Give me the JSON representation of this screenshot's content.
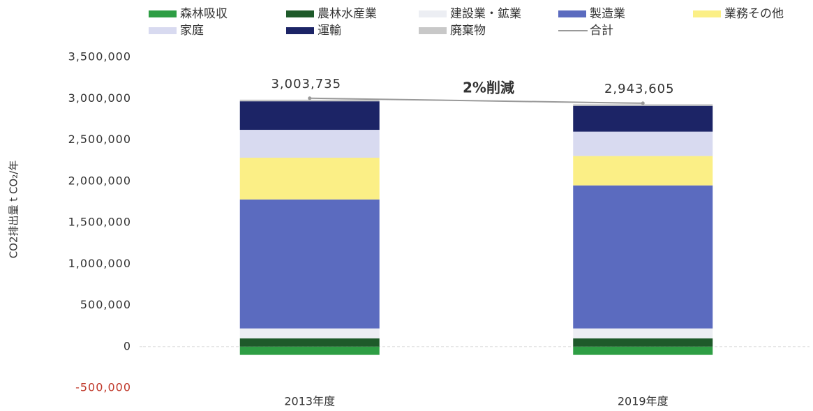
{
  "chart_data": {
    "type": "bar",
    "stacked": true,
    "y_label": "CO2排出量 t CO₂/年",
    "annotation": "2%削減",
    "categories": [
      "2013年度",
      "2019年度"
    ],
    "ylim": [
      -500000,
      3500000
    ],
    "yticks": [
      {
        "value": -500000,
        "label": "-500,000"
      },
      0,
      {
        "value": 500000,
        "label": "500,000"
      },
      {
        "value": 1000000,
        "label": "1,000,000"
      },
      {
        "value": 1500000,
        "label": "1,500,000"
      },
      {
        "value": 2000000,
        "label": "2,000,000"
      },
      {
        "value": 2500000,
        "label": "2,500,000"
      },
      {
        "value": 3000000,
        "label": "3,000,000"
      },
      {
        "value": 3500000,
        "label": "3,500,000"
      }
    ],
    "negative_tick_color": "#c0392b",
    "series": [
      {
        "name": "森林吸収",
        "color": "#2e9e44",
        "values": [
          -100000,
          -100000
        ]
      },
      {
        "name": "農林水産業",
        "color": "#1e5a2a",
        "values": [
          100000,
          100000
        ]
      },
      {
        "name": "建設業・鉱業",
        "color": "#eceef3",
        "values": [
          120000,
          120000
        ]
      },
      {
        "name": "製造業",
        "color": "#5b6bbf",
        "values": [
          1560000,
          1730000
        ]
      },
      {
        "name": "業務その他",
        "color": "#fbef86",
        "values": [
          505000,
          355000
        ]
      },
      {
        "name": "家庭",
        "color": "#d8daf0",
        "values": [
          337000,
          295000
        ]
      },
      {
        "name": "運輸",
        "color": "#1c2466",
        "values": [
          345000,
          312000
        ]
      },
      {
        "name": "廃棄物",
        "color": "#c8c8c8",
        "values": [
          20000,
          20000
        ]
      },
      {
        "name": "合計",
        "type": "line",
        "color": "#999999",
        "values": [
          3003735,
          2943605
        ],
        "value_labels": [
          "3,003,735",
          "2,943,605"
        ]
      }
    ]
  }
}
